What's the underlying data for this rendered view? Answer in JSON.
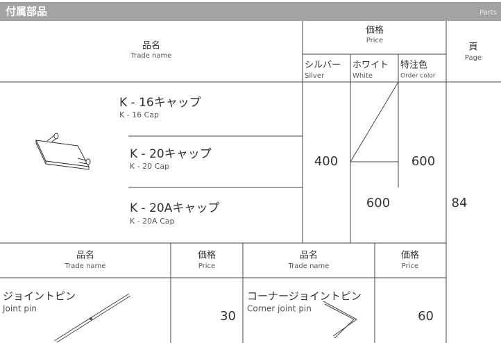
{
  "header": {
    "title": "付属部品",
    "title_en": "Parts"
  },
  "main_table": {
    "header": {
      "name": "品名",
      "name_en": "Trade name",
      "price": "価格",
      "price_en": "Price",
      "page": "頁",
      "page_en": "Page",
      "colors": [
        {
          "ja": "シルバー",
          "en": "Silver"
        },
        {
          "ja": "ホワイト",
          "en": "White"
        },
        {
          "ja": "特注色",
          "en": "Order color"
        }
      ]
    },
    "items": [
      {
        "name": "K - 16キャップ",
        "name_en": "K - 16 Cap"
      },
      {
        "name": "K - 20キャップ",
        "name_en": "K - 20 Cap"
      },
      {
        "name": "K - 20Aキャップ",
        "name_en": "K - 20A Cap"
      }
    ],
    "silver_price": 400,
    "white_price": 600,
    "order_price": 600,
    "page": 84
  },
  "accessory_table": {
    "header": {
      "name": "品名",
      "name_en": "Trade name",
      "price": "価格",
      "price_en": "Price"
    },
    "items": [
      {
        "name": "ジョイントピン",
        "name_en": "Joint pin",
        "price": 30
      },
      {
        "name": "コーナージョイントピン",
        "name_en": "Corner joint pin",
        "price": 60
      }
    ]
  }
}
